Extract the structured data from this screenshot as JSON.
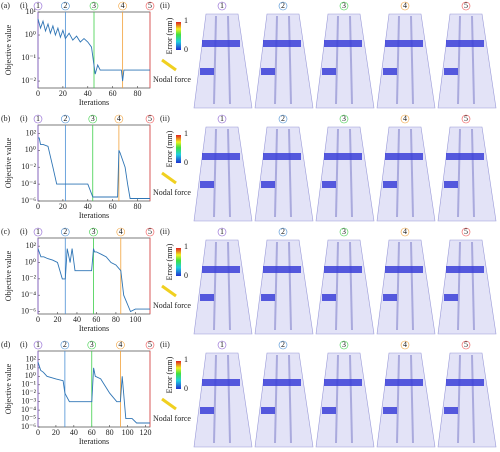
{
  "chart_data": [
    {
      "type": "line",
      "panel": "(a)",
      "sub": "(i)",
      "x_label": "Iterations",
      "y_label": "Objective value",
      "yscale": "log",
      "grid": false,
      "xlim": [
        0,
        90
      ],
      "xticks": [
        0,
        20,
        40,
        60,
        80
      ],
      "ylim": [
        0.005,
        10
      ],
      "yticks": [
        {
          "value": 10,
          "label": "10¹"
        },
        {
          "value": 1,
          "label": "10⁰"
        },
        {
          "value": 0.1,
          "label": "10⁻¹"
        },
        {
          "value": 0.01,
          "label": "10⁻²"
        }
      ],
      "markers": [
        {
          "x": 0,
          "label": "1",
          "color": "#8a5fd0"
        },
        {
          "x": 22,
          "label": "2",
          "color": "#4a8fd4"
        },
        {
          "x": 45,
          "label": "3",
          "color": "#3ecf4a"
        },
        {
          "x": 68,
          "label": "4",
          "color": "#f2a23a"
        },
        {
          "x": 90,
          "label": "5",
          "color": "#f05050"
        }
      ],
      "x": [
        0,
        2,
        4,
        6,
        8,
        10,
        12,
        14,
        16,
        18,
        20,
        22,
        25,
        28,
        31,
        34,
        37,
        40,
        43,
        46,
        48,
        50,
        55,
        60,
        65,
        67,
        68,
        69,
        70,
        75,
        80,
        85,
        90
      ],
      "series": [
        {
          "color": "#2f75b5",
          "values": [
            5,
            2,
            4,
            1.5,
            3,
            1.2,
            2.5,
            1,
            2,
            0.8,
            1.6,
            0.7,
            1.2,
            0.6,
            0.9,
            0.5,
            0.7,
            0.5,
            0.3,
            0.02,
            0.05,
            0.03,
            0.03,
            0.03,
            0.03,
            0.03,
            0.01,
            0.03,
            0.03,
            0.03,
            0.03,
            0.03,
            0.03
          ]
        }
      ]
    },
    {
      "type": "line",
      "panel": "(b)",
      "sub": "(i)",
      "x_label": "Iterations",
      "y_label": "Objective value",
      "yscale": "log",
      "grid": false,
      "xlim": [
        0,
        90
      ],
      "xticks": [
        0,
        20,
        40,
        60,
        80
      ],
      "ylim": [
        1e-06,
        1000
      ],
      "yticks": [
        {
          "value": 100,
          "label": "10²"
        },
        {
          "value": 1,
          "label": "10⁰"
        },
        {
          "value": 0.01,
          "label": "10⁻²"
        },
        {
          "value": 0.0001,
          "label": "10⁻⁴"
        },
        {
          "value": 1e-06,
          "label": "10⁻⁶"
        }
      ],
      "markers": [
        {
          "x": 0,
          "label": "1",
          "color": "#8a5fd0"
        },
        {
          "x": 22,
          "label": "2",
          "color": "#4a8fd4"
        },
        {
          "x": 44,
          "label": "3",
          "color": "#3ecf4a"
        },
        {
          "x": 65,
          "label": "4",
          "color": "#f2a23a"
        },
        {
          "x": 90,
          "label": "5",
          "color": "#f05050"
        }
      ],
      "x": [
        0,
        1,
        2,
        4,
        8,
        12,
        15,
        20,
        30,
        40,
        44,
        50,
        60,
        64,
        65,
        66,
        70,
        72,
        74,
        80,
        90
      ],
      "series": [
        {
          "color": "#2f75b5",
          "values": [
            30,
            30,
            5,
            5,
            3,
            0.01,
            0.0001,
            0.0001,
            0.0001,
            0.0001,
            3e-06,
            3e-06,
            3e-06,
            3e-06,
            1,
            0.5,
            0.01,
            0.0001,
            2e-06,
            2e-06,
            2e-06
          ]
        }
      ]
    },
    {
      "type": "line",
      "panel": "(c)",
      "sub": "(i)",
      "x_label": "Iterations",
      "y_label": "Objective value",
      "yscale": "log",
      "grid": false,
      "xlim": [
        0,
        115
      ],
      "xticks": [
        0,
        20,
        40,
        60,
        80,
        100
      ],
      "ylim": [
        5e-07,
        1000
      ],
      "yticks": [
        {
          "value": 100,
          "label": "10²"
        },
        {
          "value": 1,
          "label": "10⁰"
        },
        {
          "value": 0.01,
          "label": "10⁻²"
        },
        {
          "value": 0.0001,
          "label": "10⁻⁴"
        },
        {
          "value": 1e-06,
          "label": "10⁻⁶"
        }
      ],
      "markers": [
        {
          "x": 0,
          "label": "1",
          "color": "#8a5fd0"
        },
        {
          "x": 28,
          "label": "2",
          "color": "#4a8fd4"
        },
        {
          "x": 57,
          "label": "3",
          "color": "#3ecf4a"
        },
        {
          "x": 85,
          "label": "4",
          "color": "#f2a23a"
        },
        {
          "x": 115,
          "label": "5",
          "color": "#f05050"
        }
      ],
      "x": [
        0,
        3,
        6,
        10,
        15,
        20,
        25,
        28,
        30,
        33,
        35,
        38,
        45,
        50,
        55,
        57,
        58,
        60,
        65,
        70,
        75,
        80,
        85,
        88,
        95,
        100,
        115
      ],
      "series": [
        {
          "color": "#2f75b5",
          "values": [
            50,
            5,
            5,
            3,
            2,
            1,
            0.01,
            0.01,
            50,
            1,
            50,
            0.1,
            0.1,
            0.1,
            0.1,
            50,
            20,
            20,
            10,
            5,
            1,
            0.5,
            0.1,
            0.0001,
            1e-06,
            2e-06,
            2e-06
          ]
        }
      ]
    },
    {
      "type": "line",
      "panel": "(d)",
      "sub": "(i)",
      "x_label": "Iterations",
      "y_label": "Objective value",
      "yscale": "log",
      "grid": false,
      "xlim": [
        0,
        125
      ],
      "xticks": [
        0,
        20,
        40,
        60,
        80,
        100,
        120
      ],
      "ylim": [
        1e-06,
        1000
      ],
      "yticks": [
        {
          "value": 100,
          "label": "10²"
        },
        {
          "value": 10,
          "label": "10¹"
        },
        {
          "value": 1,
          "label": "10⁰"
        },
        {
          "value": 0.1,
          "label": "10⁻¹"
        },
        {
          "value": 0.01,
          "label": "10⁻²"
        },
        {
          "value": 0.001,
          "label": "10⁻³"
        },
        {
          "value": 0.0001,
          "label": "10⁻⁴"
        },
        {
          "value": 1e-05,
          "label": "10⁻⁵"
        },
        {
          "value": 1e-06,
          "label": "10⁻⁶"
        }
      ],
      "markers": [
        {
          "x": 0,
          "label": "1",
          "color": "#8a5fd0"
        },
        {
          "x": 30,
          "label": "2",
          "color": "#4a8fd4"
        },
        {
          "x": 60,
          "label": "3",
          "color": "#3ecf4a"
        },
        {
          "x": 92,
          "label": "4",
          "color": "#f2a23a"
        },
        {
          "x": 125,
          "label": "5",
          "color": "#f05050"
        }
      ],
      "x": [
        0,
        3,
        6,
        10,
        20,
        28,
        30,
        35,
        40,
        55,
        60,
        62,
        64,
        70,
        80,
        88,
        92,
        94,
        98,
        105,
        110,
        125
      ],
      "series": [
        {
          "color": "#2f75b5",
          "values": [
            50,
            5,
            3,
            1,
            0.5,
            0.3,
            0.01,
            0.001,
            0.001,
            0.001,
            0.001,
            10,
            1,
            0.5,
            0.01,
            0.001,
            0.001,
            1,
            1e-05,
            1e-05,
            3e-06,
            3e-06
          ]
        }
      ]
    }
  ],
  "panels": [
    {
      "sub": "(ii)",
      "columns": [
        "1",
        "2",
        "3",
        "4",
        "5"
      ],
      "colorbar_title": "Error (mm)",
      "colorbar_max": 1,
      "colorbar_min": 0,
      "force_label": "Nodal force"
    },
    {
      "sub": "(ii)",
      "columns": [
        "1",
        "2",
        "3",
        "4",
        "5"
      ],
      "colorbar_title": "Error (mm)",
      "colorbar_max": 1,
      "colorbar_min": 0,
      "force_label": "Nodal force"
    },
    {
      "sub": "(ii)",
      "columns": [
        "1",
        "2",
        "3",
        "4",
        "5"
      ],
      "colorbar_title": "Error (mm)",
      "colorbar_max": 1,
      "colorbar_min": 0,
      "force_label": "Nodal force"
    },
    {
      "sub": "(ii)",
      "columns": [
        "1",
        "2",
        "3",
        "4",
        "5"
      ],
      "colorbar_title": "Error (mm)",
      "colorbar_max": 1,
      "colorbar_min": 0,
      "force_label": "Nodal force"
    }
  ]
}
